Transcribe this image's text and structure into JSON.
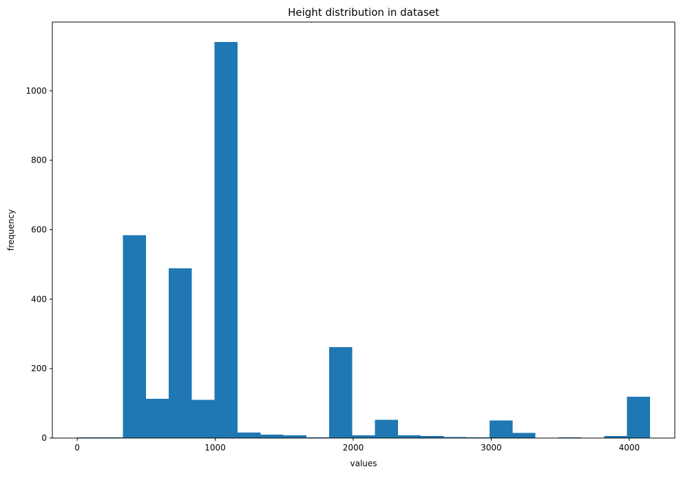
{
  "chart_data": {
    "type": "bar",
    "title": "Height distribution in dataset",
    "xlabel": "values",
    "ylabel": "frequency",
    "bin_edges": [
      0,
      166,
      332,
      498,
      664,
      830,
      996,
      1162,
      1328,
      1494,
      1660,
      1826,
      1992,
      2158,
      2324,
      2490,
      2656,
      2822,
      2988,
      3154,
      3320,
      3486,
      3652,
      3818,
      3984,
      4150
    ],
    "values": [
      2,
      2,
      584,
      113,
      489,
      110,
      1140,
      16,
      10,
      8,
      2,
      262,
      8,
      53,
      8,
      6,
      3,
      2,
      51,
      15,
      0,
      2,
      0,
      6,
      119
    ],
    "xlim": [
      -180,
      4330
    ],
    "ylim": [
      0,
      1198
    ],
    "xticks": [
      0,
      1000,
      2000,
      3000,
      4000
    ],
    "xtick_labels": [
      "0",
      "1000",
      "2000",
      "3000",
      "4000"
    ],
    "yticks": [
      0,
      200,
      400,
      600,
      800,
      1000
    ],
    "ytick_labels": [
      "0",
      "200",
      "400",
      "600",
      "800",
      "1000"
    ],
    "bar_color": "#1f77b4",
    "grid": false,
    "legend": "none"
  }
}
